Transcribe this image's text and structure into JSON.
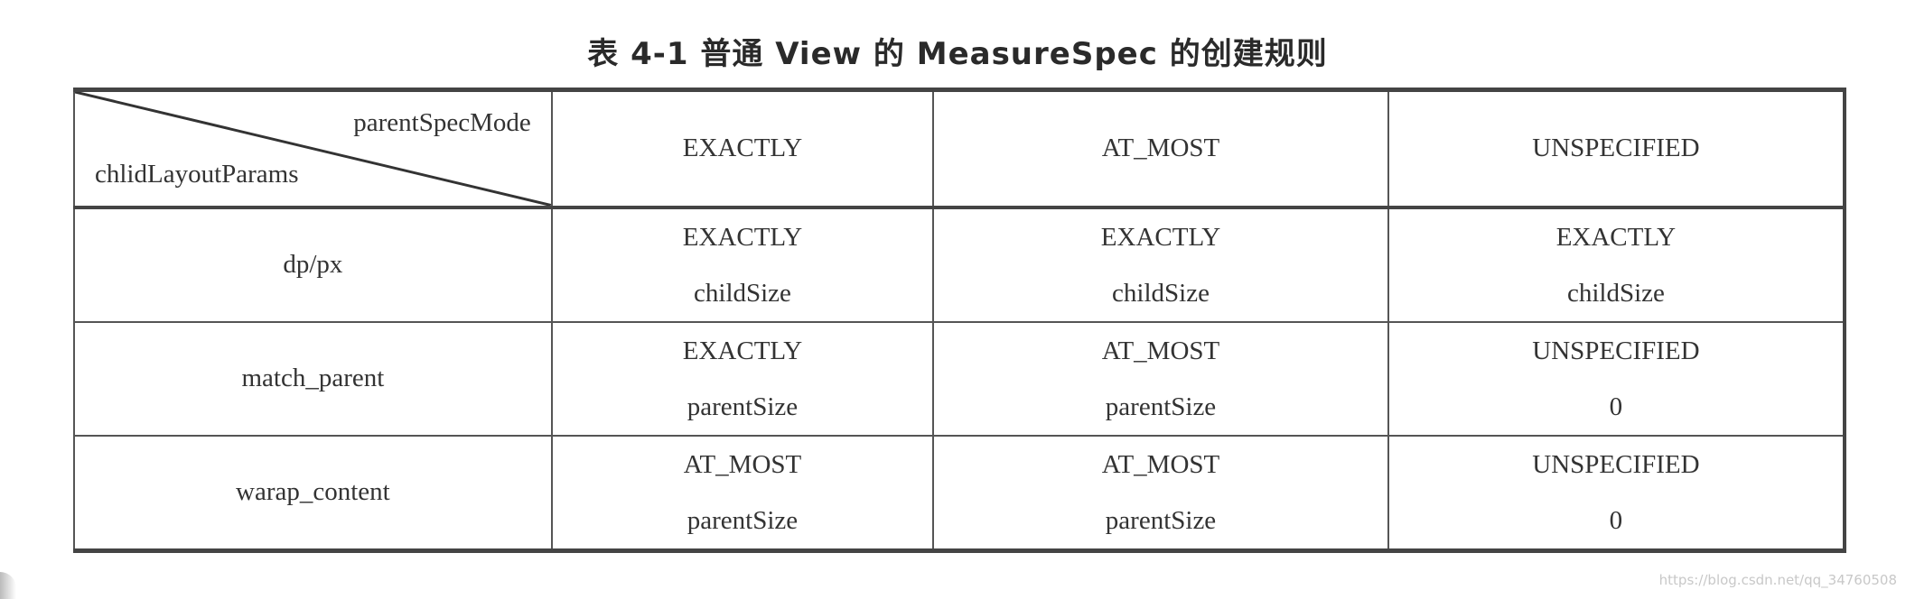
{
  "title": "表 4-1   普通 View 的 MeasureSpec 的创建规则",
  "table": {
    "corner_top": "parentSpecMode",
    "corner_bottom": "chlidLayoutParams",
    "columns": [
      "EXACTLY",
      "AT_MOST",
      "UNSPECIFIED"
    ],
    "rows": [
      {
        "label": "dp/px",
        "cells": [
          [
            "EXACTLY",
            "childSize"
          ],
          [
            "EXACTLY",
            "childSize"
          ],
          [
            "EXACTLY",
            "childSize"
          ]
        ]
      },
      {
        "label": "match_parent",
        "cells": [
          [
            "EXACTLY",
            "parentSize"
          ],
          [
            "AT_MOST",
            "parentSize"
          ],
          [
            "UNSPECIFIED",
            "0"
          ]
        ]
      },
      {
        "label": "warap_content",
        "cells": [
          [
            "AT_MOST",
            "parentSize"
          ],
          [
            "AT_MOST",
            "parentSize"
          ],
          [
            "UNSPECIFIED",
            "0"
          ]
        ]
      }
    ]
  },
  "watermark": "https://blog.csdn.net/qq_34760508"
}
